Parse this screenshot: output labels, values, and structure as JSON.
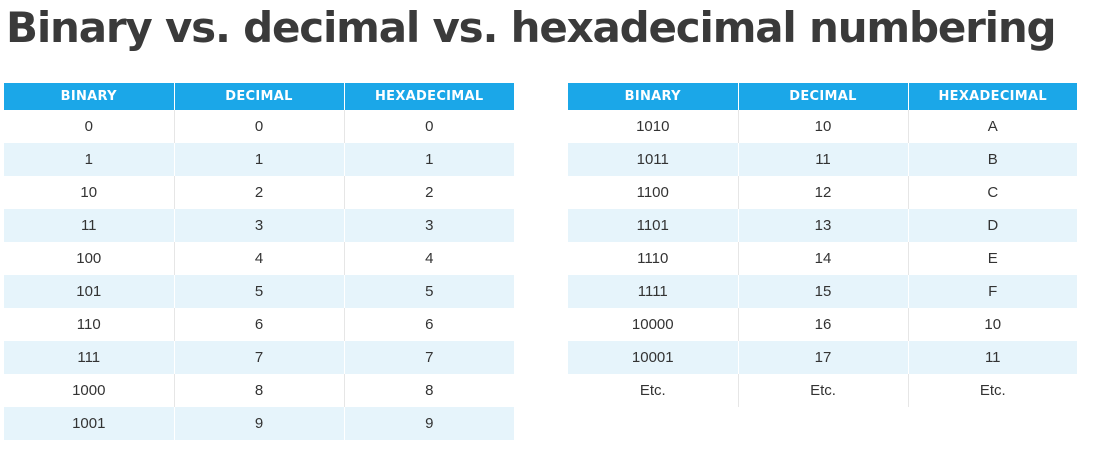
{
  "title": "Binary vs. decimal vs. hexadecimal numbering",
  "columns": [
    "BINARY",
    "DECIMAL",
    "HEXADECIMAL"
  ],
  "left_table": {
    "rows": [
      [
        "0",
        "0",
        "0"
      ],
      [
        "1",
        "1",
        "1"
      ],
      [
        "10",
        "2",
        "2"
      ],
      [
        "11",
        "3",
        "3"
      ],
      [
        "100",
        "4",
        "4"
      ],
      [
        "101",
        "5",
        "5"
      ],
      [
        "110",
        "6",
        "6"
      ],
      [
        "111",
        "7",
        "7"
      ],
      [
        "1000",
        "8",
        "8"
      ],
      [
        "1001",
        "9",
        "9"
      ]
    ]
  },
  "right_table": {
    "rows": [
      [
        "1010",
        "10",
        "A"
      ],
      [
        "1011",
        "11",
        "B"
      ],
      [
        "1100",
        "12",
        "C"
      ],
      [
        "1101",
        "13",
        "D"
      ],
      [
        "1110",
        "14",
        "E"
      ],
      [
        "1111",
        "15",
        "F"
      ],
      [
        "10000",
        "16",
        "10"
      ],
      [
        "10001",
        "17",
        "11"
      ],
      [
        "Etc.",
        "Etc.",
        "Etc."
      ]
    ]
  },
  "colors": {
    "header_bg": "#1ba7e8",
    "header_text": "#ffffff",
    "stripe_bg": "#e6f4fb",
    "title_text": "#3a3a3a",
    "cell_text": "#333333"
  }
}
